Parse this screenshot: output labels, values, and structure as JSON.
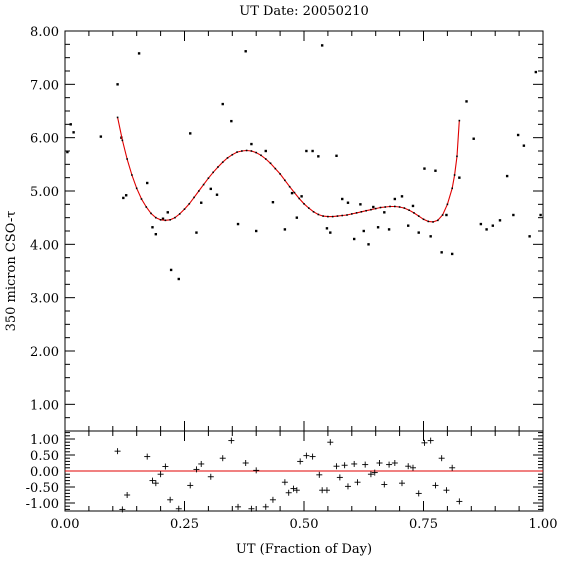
{
  "chart_data": [
    {
      "type": "scatter",
      "title": "UT Date: 20050210",
      "xlabel": "",
      "ylabel": "350 micron CSO-τ",
      "xlim": [
        0.0,
        1.0
      ],
      "ylim": [
        0.5,
        8.0
      ],
      "yticks": [
        "1.00",
        "2.00",
        "3.00",
        "4.00",
        "5.00",
        "6.00",
        "7.00",
        "8.00"
      ],
      "series": [
        {
          "kind": "points",
          "x": [
            0.005,
            0.012,
            0.018,
            0.075,
            0.11,
            0.118,
            0.122,
            0.128,
            0.155,
            0.172,
            0.183,
            0.19,
            0.205,
            0.215,
            0.222,
            0.238,
            0.262,
            0.275,
            0.285,
            0.305,
            0.318,
            0.33,
            0.348,
            0.362,
            0.378,
            0.39,
            0.4,
            0.42,
            0.435,
            0.46,
            0.475,
            0.485,
            0.495,
            0.505,
            0.518,
            0.53,
            0.538,
            0.548,
            0.555,
            0.568,
            0.58,
            0.592,
            0.605,
            0.618,
            0.625,
            0.635,
            0.645,
            0.655,
            0.668,
            0.678,
            0.69,
            0.705,
            0.718,
            0.728,
            0.74,
            0.752,
            0.765,
            0.775,
            0.788,
            0.798,
            0.81,
            0.825,
            0.84,
            0.855,
            0.87,
            0.882,
            0.895,
            0.91,
            0.925,
            0.938,
            0.948,
            0.96,
            0.972,
            0.985,
            0.995
          ],
          "y": [
            5.73,
            6.25,
            6.1,
            6.02,
            7.0,
            6.0,
            4.87,
            4.92,
            7.58,
            5.15,
            4.32,
            4.19,
            4.48,
            4.6,
            3.52,
            3.35,
            6.08,
            4.22,
            4.78,
            5.04,
            4.93,
            6.63,
            6.31,
            4.38,
            7.62,
            5.88,
            4.25,
            5.75,
            4.79,
            4.28,
            4.96,
            4.5,
            4.9,
            5.75,
            5.75,
            5.65,
            7.73,
            4.3,
            4.22,
            5.66,
            4.85,
            4.78,
            4.1,
            4.75,
            4.25,
            4.0,
            4.7,
            4.32,
            4.6,
            4.28,
            4.85,
            4.9,
            4.35,
            4.72,
            4.22,
            5.42,
            4.15,
            5.38,
            3.85,
            4.55,
            3.82,
            5.25,
            6.68,
            5.98,
            4.38,
            4.28,
            4.35,
            4.45,
            5.28,
            4.55,
            6.05,
            5.85,
            4.15,
            7.23,
            4.55
          ]
        },
        {
          "kind": "fit",
          "x": [
            0.11,
            0.12,
            0.13,
            0.14,
            0.15,
            0.16,
            0.17,
            0.18,
            0.19,
            0.2,
            0.21,
            0.22,
            0.23,
            0.24,
            0.25,
            0.26,
            0.27,
            0.28,
            0.29,
            0.3,
            0.31,
            0.32,
            0.33,
            0.34,
            0.35,
            0.36,
            0.37,
            0.38,
            0.39,
            0.4,
            0.41,
            0.42,
            0.43,
            0.44,
            0.45,
            0.46,
            0.47,
            0.48,
            0.49,
            0.5,
            0.51,
            0.52,
            0.53,
            0.54,
            0.55,
            0.56,
            0.57,
            0.58,
            0.59,
            0.6,
            0.61,
            0.62,
            0.63,
            0.64,
            0.65,
            0.66,
            0.67,
            0.68,
            0.69,
            0.7,
            0.71,
            0.72,
            0.73,
            0.74,
            0.75,
            0.76,
            0.77,
            0.78,
            0.79,
            0.8,
            0.81,
            0.815,
            0.82,
            0.825
          ],
          "y": [
            6.38,
            5.95,
            5.6,
            5.3,
            5.05,
            4.85,
            4.7,
            4.58,
            4.5,
            4.46,
            4.45,
            4.46,
            4.5,
            4.57,
            4.66,
            4.76,
            4.88,
            5.0,
            5.12,
            5.24,
            5.35,
            5.45,
            5.54,
            5.62,
            5.68,
            5.73,
            5.75,
            5.76,
            5.75,
            5.72,
            5.67,
            5.6,
            5.52,
            5.42,
            5.32,
            5.2,
            5.08,
            4.97,
            4.86,
            4.76,
            4.68,
            4.61,
            4.56,
            4.53,
            4.52,
            4.52,
            4.53,
            4.54,
            4.55,
            4.57,
            4.59,
            4.61,
            4.63,
            4.65,
            4.67,
            4.69,
            4.7,
            4.71,
            4.71,
            4.7,
            4.68,
            4.64,
            4.59,
            4.53,
            4.47,
            4.43,
            4.42,
            4.45,
            4.55,
            4.75,
            5.05,
            5.3,
            5.65,
            6.32
          ]
        }
      ]
    },
    {
      "type": "scatter",
      "title": "",
      "xlabel": "UT (Fraction of Day)",
      "ylabel": "",
      "xlim": [
        0.0,
        1.0
      ],
      "ylim": [
        -1.25,
        1.25
      ],
      "xticks": [
        "0.00",
        "0.25",
        "0.50",
        "0.75",
        "1.00"
      ],
      "yticks": [
        "-1.00",
        "-0.50",
        "0.00",
        "0.50",
        "1.00"
      ],
      "reference_line": 0.0,
      "series": [
        {
          "kind": "residuals",
          "x": [
            0.11,
            0.12,
            0.13,
            0.172,
            0.183,
            0.19,
            0.2,
            0.21,
            0.22,
            0.238,
            0.262,
            0.275,
            0.285,
            0.305,
            0.33,
            0.348,
            0.362,
            0.378,
            0.39,
            0.4,
            0.42,
            0.435,
            0.46,
            0.468,
            0.478,
            0.485,
            0.492,
            0.505,
            0.518,
            0.532,
            0.538,
            0.548,
            0.555,
            0.568,
            0.575,
            0.585,
            0.592,
            0.605,
            0.612,
            0.628,
            0.64,
            0.648,
            0.658,
            0.668,
            0.678,
            0.69,
            0.705,
            0.718,
            0.728,
            0.74,
            0.752,
            0.765,
            0.775,
            0.788,
            0.798,
            0.81,
            0.825
          ],
          "y": [
            0.62,
            -1.2,
            -0.75,
            0.45,
            -0.3,
            -0.38,
            -0.1,
            0.14,
            -0.9,
            -1.18,
            -0.45,
            0.05,
            0.22,
            -0.18,
            0.4,
            0.95,
            -1.12,
            0.25,
            -1.18,
            0.02,
            -1.12,
            -0.9,
            -0.35,
            -0.68,
            -0.55,
            -0.6,
            0.3,
            0.48,
            0.45,
            -0.12,
            -0.6,
            -0.6,
            0.9,
            0.15,
            -0.2,
            0.18,
            -0.48,
            0.22,
            -0.35,
            0.2,
            -0.1,
            -0.05,
            0.25,
            -0.42,
            0.2,
            0.25,
            -0.38,
            0.15,
            0.1,
            -0.7,
            0.88,
            0.95,
            -0.45,
            0.4,
            -0.6,
            0.1,
            -0.95
          ]
        }
      ]
    }
  ]
}
